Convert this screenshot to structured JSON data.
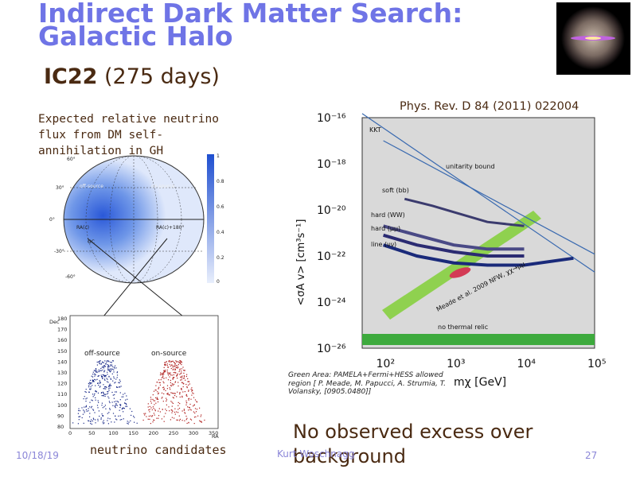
{
  "slide": {
    "title": "Indirect Dark Matter Search: Galactic Halo",
    "subtitle_bold": "IC22",
    "subtitle_rest": " (275 days)",
    "caption_left": "Expected relative neutrino flux from DM self-annihilation in GH",
    "caption_right": "Phys. Rev. D 84 (2011) 022004",
    "neutrino_caption": "neutrino candidates",
    "conclusion": "No observed excess over background",
    "footer_date": "10/18/19",
    "footer_author": "Kurt Woschnagg",
    "page_number": "27"
  },
  "skymap": {
    "lat_labels": [
      "60°",
      "30°",
      "0°",
      "-30°",
      "-60°"
    ],
    "region_labels": [
      "off-source",
      "on-source",
      "RA(c)",
      "RA(c)+180°",
      "GC"
    ],
    "colorbar_ticks": [
      "1",
      "0.8",
      "0.6",
      "0.4",
      "0.2",
      "0"
    ]
  },
  "scatter": {
    "y_label": "Dec",
    "y_ticks": [
      "180",
      "170",
      "160",
      "150",
      "140",
      "130",
      "120",
      "110",
      "100",
      "90",
      "80"
    ],
    "x_ticks": [
      "0",
      "50",
      "100",
      "150",
      "200",
      "250",
      "300",
      "350"
    ],
    "x_label": "RA",
    "labels": [
      "off-source",
      "on-source"
    ]
  },
  "mainplot": {
    "y_label": "<σA v> [cm³s⁻¹]",
    "x_label": "mχ [GeV]",
    "y_ticks": [
      "10⁻¹⁶",
      "10⁻¹⁸",
      "10⁻²⁰",
      "10⁻²²",
      "10⁻²⁴",
      "10⁻²⁶"
    ],
    "x_ticks": [
      "10²",
      "10³",
      "10⁴",
      "10⁵"
    ],
    "annotations": [
      "KKT",
      "unitarity bound",
      "soft (bb)",
      "hard (WW)",
      "hard (μμ)",
      "line (νν)",
      "Meade et al. 2009 NFW, χχ→μμ",
      "no thermal relic"
    ],
    "legend_text": "Green Area: PAMELA+Fermi+HESS allowed region [ P. Meade, M. Papucci, A. Strumia, T. Volansky, [0905.0480]]"
  },
  "chart_data": {
    "type": "line",
    "title": "",
    "xlabel": "mχ [GeV]",
    "ylabel": "<σA v> [cm³s⁻¹]",
    "xscale": "log",
    "yscale": "log",
    "xlim": [
      50,
      100000
    ],
    "ylim": [
      1e-26,
      1e-16
    ],
    "series": [
      {
        "name": "KKT",
        "x": [
          50,
          100000
        ],
        "y": [
          1.5e-16,
          2e-23
        ]
      },
      {
        "name": "unitarity bound",
        "x": [
          100,
          100000
        ],
        "y": [
          1e-17,
          1.2e-22
        ]
      },
      {
        "name": "soft (bb)",
        "x": [
          200,
          500,
          1000,
          3000,
          10000
        ],
        "y": [
          3e-20,
          1.5e-20,
          8e-21,
          3e-21,
          2e-21
        ]
      },
      {
        "name": "hard (WW)",
        "x": [
          100,
          300,
          1000,
          3000,
          10000
        ],
        "y": [
          2e-21,
          8e-22,
          3e-22,
          2e-22,
          2e-22
        ]
      },
      {
        "name": "hard (μμ)",
        "x": [
          100,
          300,
          1000,
          3000,
          10000
        ],
        "y": [
          8e-22,
          3e-22,
          1.5e-22,
          1e-22,
          1e-22
        ]
      },
      {
        "name": "line (νν)",
        "x": [
          100,
          300,
          1000,
          3000,
          10000,
          50000
        ],
        "y": [
          3e-22,
          1e-22,
          5e-23,
          4e-23,
          4e-23,
          8e-23
        ]
      }
    ],
    "shaded": [
      {
        "name": "Green Area: PAMELA+Fermi+HESS allowed region",
        "color": "#8fd14f"
      },
      {
        "name": "Meade et al. 2009 NFW, χχ→μμ",
        "color": "#d33b55"
      },
      {
        "name": "no thermal relic",
        "color": "#3daa3d"
      }
    ]
  },
  "colors": {
    "title": "#6f74e6",
    "text": "#4a2a12",
    "footer": "#8b86d8",
    "off_source": "#1d2d8a",
    "on_source": "#b0201e"
  }
}
